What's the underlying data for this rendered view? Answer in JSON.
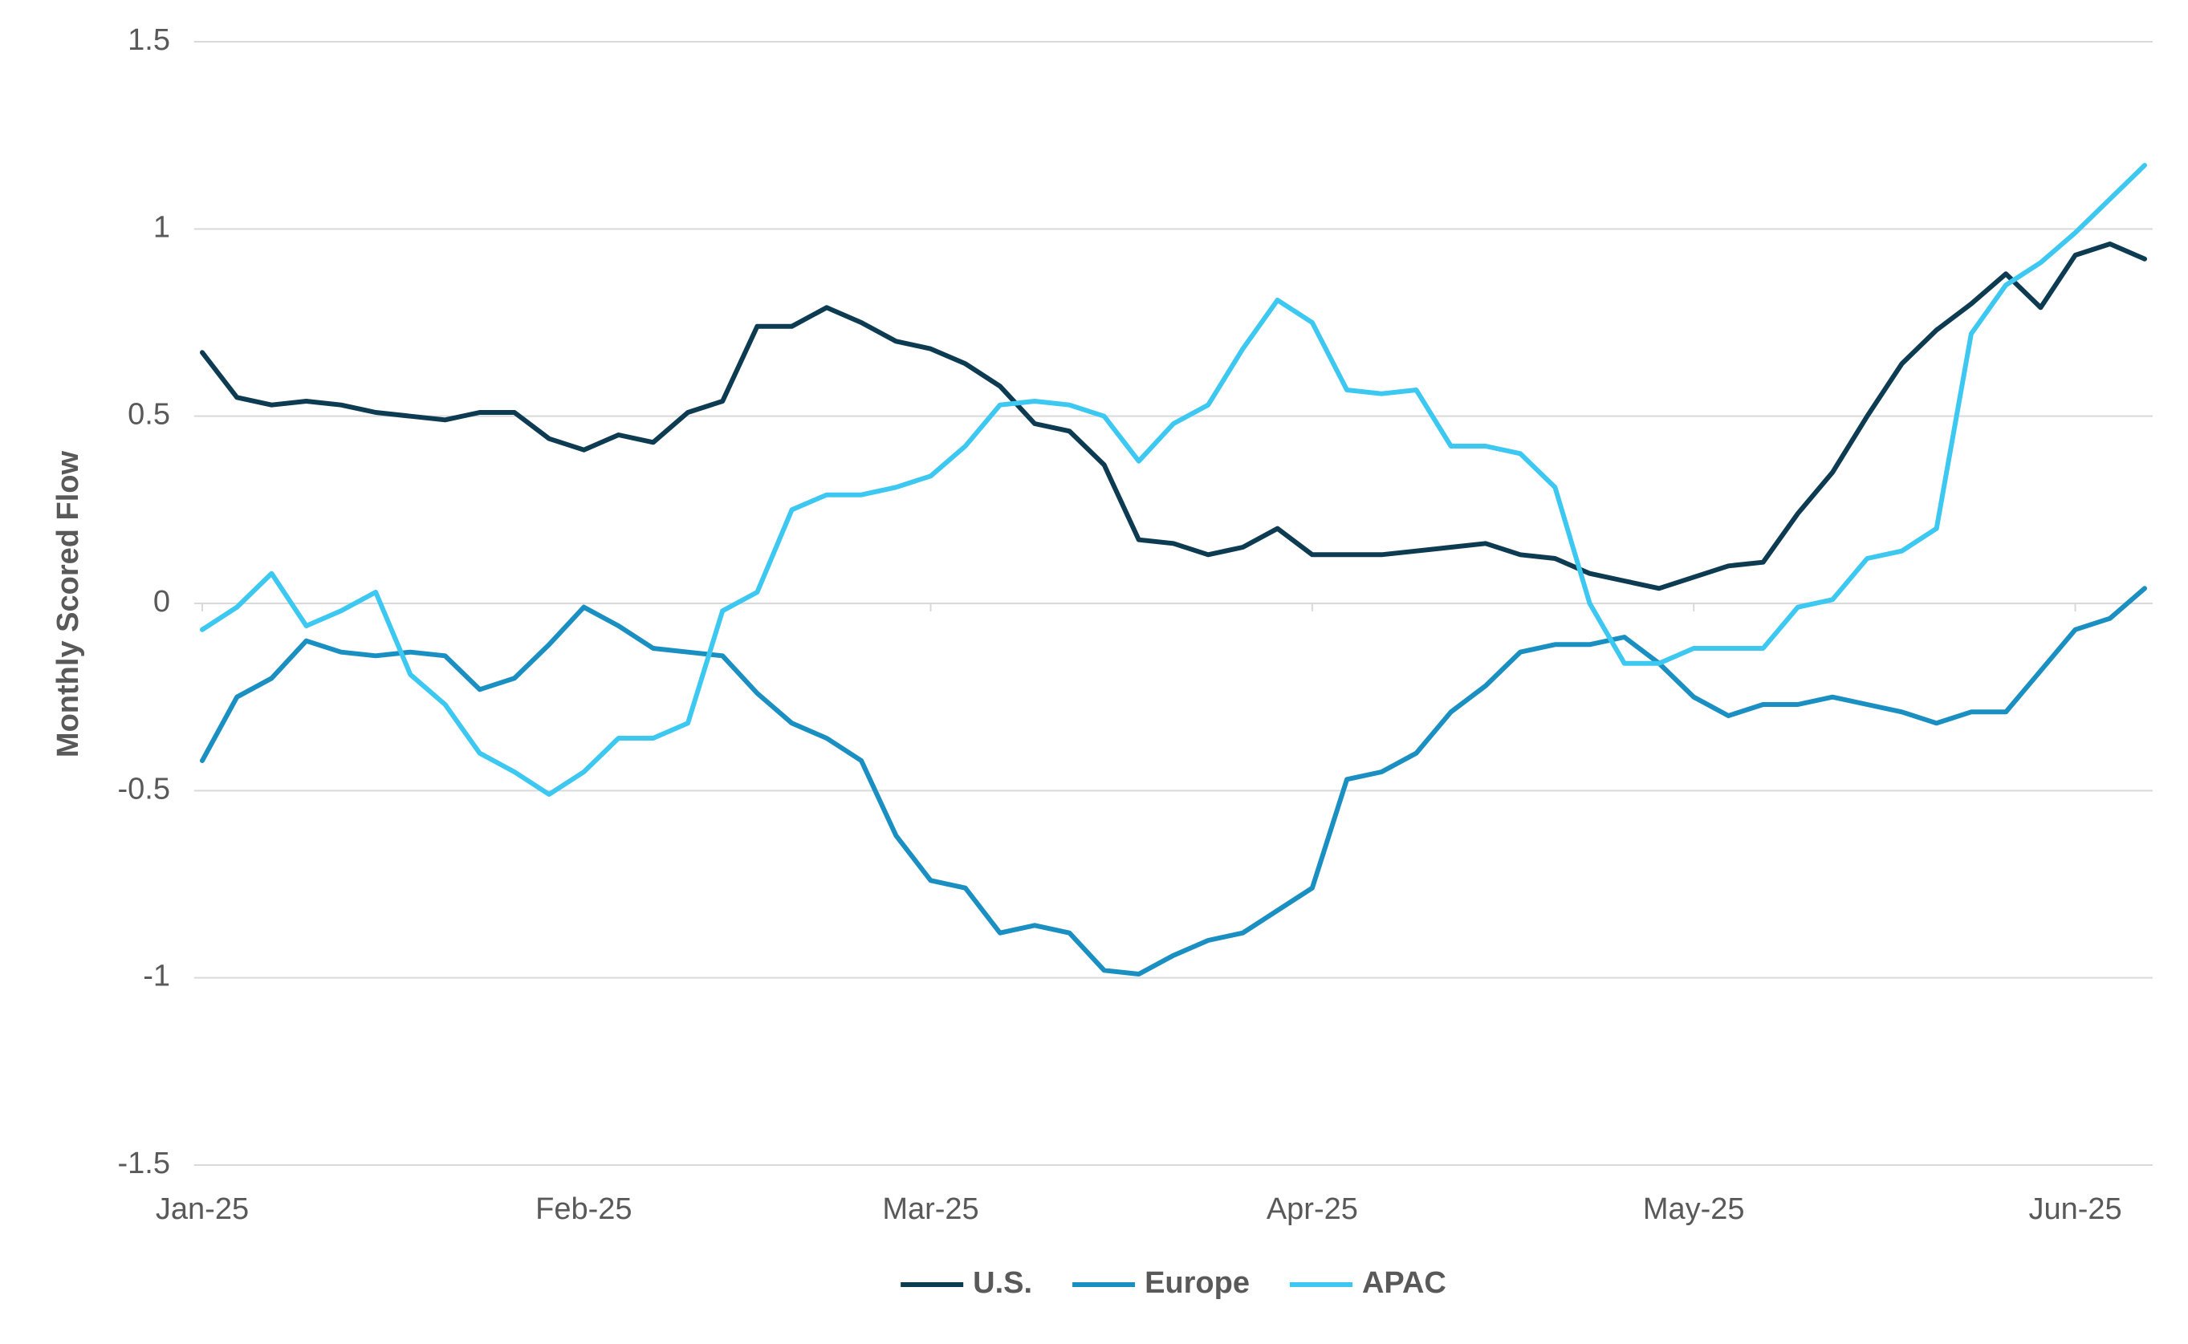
{
  "chart_data": {
    "type": "line",
    "y_label": "Monthly Scored Flow",
    "categories": [
      "Jan-25",
      null,
      null,
      null,
      null,
      null,
      null,
      null,
      null,
      null,
      null,
      "Feb-25",
      null,
      null,
      null,
      null,
      null,
      null,
      null,
      null,
      null,
      "Mar-25",
      null,
      null,
      null,
      null,
      null,
      null,
      null,
      null,
      null,
      null,
      "Apr-25",
      null,
      null,
      null,
      null,
      null,
      null,
      null,
      null,
      null,
      null,
      "May-25",
      null,
      null,
      null,
      null,
      null,
      null,
      null,
      null,
      null,
      null,
      "Jun-25",
      null,
      null
    ],
    "series": [
      {
        "name": "U.S.",
        "color": "#0d3b52",
        "values": [
          0.67,
          0.55,
          0.53,
          0.54,
          0.53,
          0.51,
          0.5,
          0.49,
          0.51,
          0.51,
          0.44,
          0.41,
          0.45,
          0.43,
          0.51,
          0.54,
          0.74,
          0.74,
          0.79,
          0.75,
          0.7,
          0.68,
          0.64,
          0.58,
          0.48,
          0.46,
          0.37,
          0.17,
          0.16,
          0.13,
          0.15,
          0.2,
          0.13,
          0.13,
          0.13,
          0.14,
          0.15,
          0.16,
          0.13,
          0.12,
          0.08,
          0.06,
          0.04,
          0.07,
          0.1,
          0.11,
          0.24,
          0.35,
          0.5,
          0.64,
          0.73,
          0.8,
          0.88,
          0.79,
          0.93,
          0.96,
          0.92
        ]
      },
      {
        "name": "Europe",
        "color": "#1a8fc1",
        "values": [
          -0.42,
          -0.25,
          -0.2,
          -0.1,
          -0.13,
          -0.14,
          -0.13,
          -0.14,
          -0.23,
          -0.2,
          -0.11,
          -0.01,
          -0.06,
          -0.12,
          -0.13,
          -0.14,
          -0.24,
          -0.32,
          -0.36,
          -0.42,
          -0.62,
          -0.74,
          -0.76,
          -0.88,
          -0.86,
          -0.88,
          -0.98,
          -0.99,
          -0.94,
          -0.9,
          -0.88,
          -0.82,
          -0.76,
          -0.47,
          -0.45,
          -0.4,
          -0.29,
          -0.22,
          -0.13,
          -0.11,
          -0.11,
          -0.09,
          -0.16,
          -0.25,
          -0.3,
          -0.27,
          -0.27,
          -0.25,
          -0.27,
          -0.29,
          -0.32,
          -0.29,
          -0.29,
          -0.18,
          -0.07,
          -0.04,
          0.04
        ]
      },
      {
        "name": "APAC",
        "color": "#3cc8f0",
        "values": [
          -0.07,
          -0.01,
          0.08,
          -0.06,
          -0.02,
          0.03,
          -0.19,
          -0.27,
          -0.4,
          -0.45,
          -0.51,
          -0.45,
          -0.36,
          -0.36,
          -0.32,
          -0.02,
          0.03,
          0.25,
          0.29,
          0.29,
          0.31,
          0.34,
          0.42,
          0.53,
          0.54,
          0.53,
          0.5,
          0.38,
          0.48,
          0.53,
          0.68,
          0.81,
          0.75,
          0.57,
          0.56,
          0.57,
          0.42,
          0.42,
          0.4,
          0.31,
          0.0,
          -0.16,
          -0.16,
          -0.12,
          -0.12,
          -0.12,
          -0.01,
          0.01,
          0.12,
          0.14,
          0.2,
          0.72,
          0.85,
          0.91,
          0.99,
          1.08,
          1.17
        ]
      }
    ],
    "ylim": [
      -1.5,
      1.5
    ],
    "yticks": [
      -1.5,
      -1,
      -0.5,
      0,
      0.5,
      1,
      1.5
    ],
    "grid": true,
    "legend": "bottom"
  }
}
